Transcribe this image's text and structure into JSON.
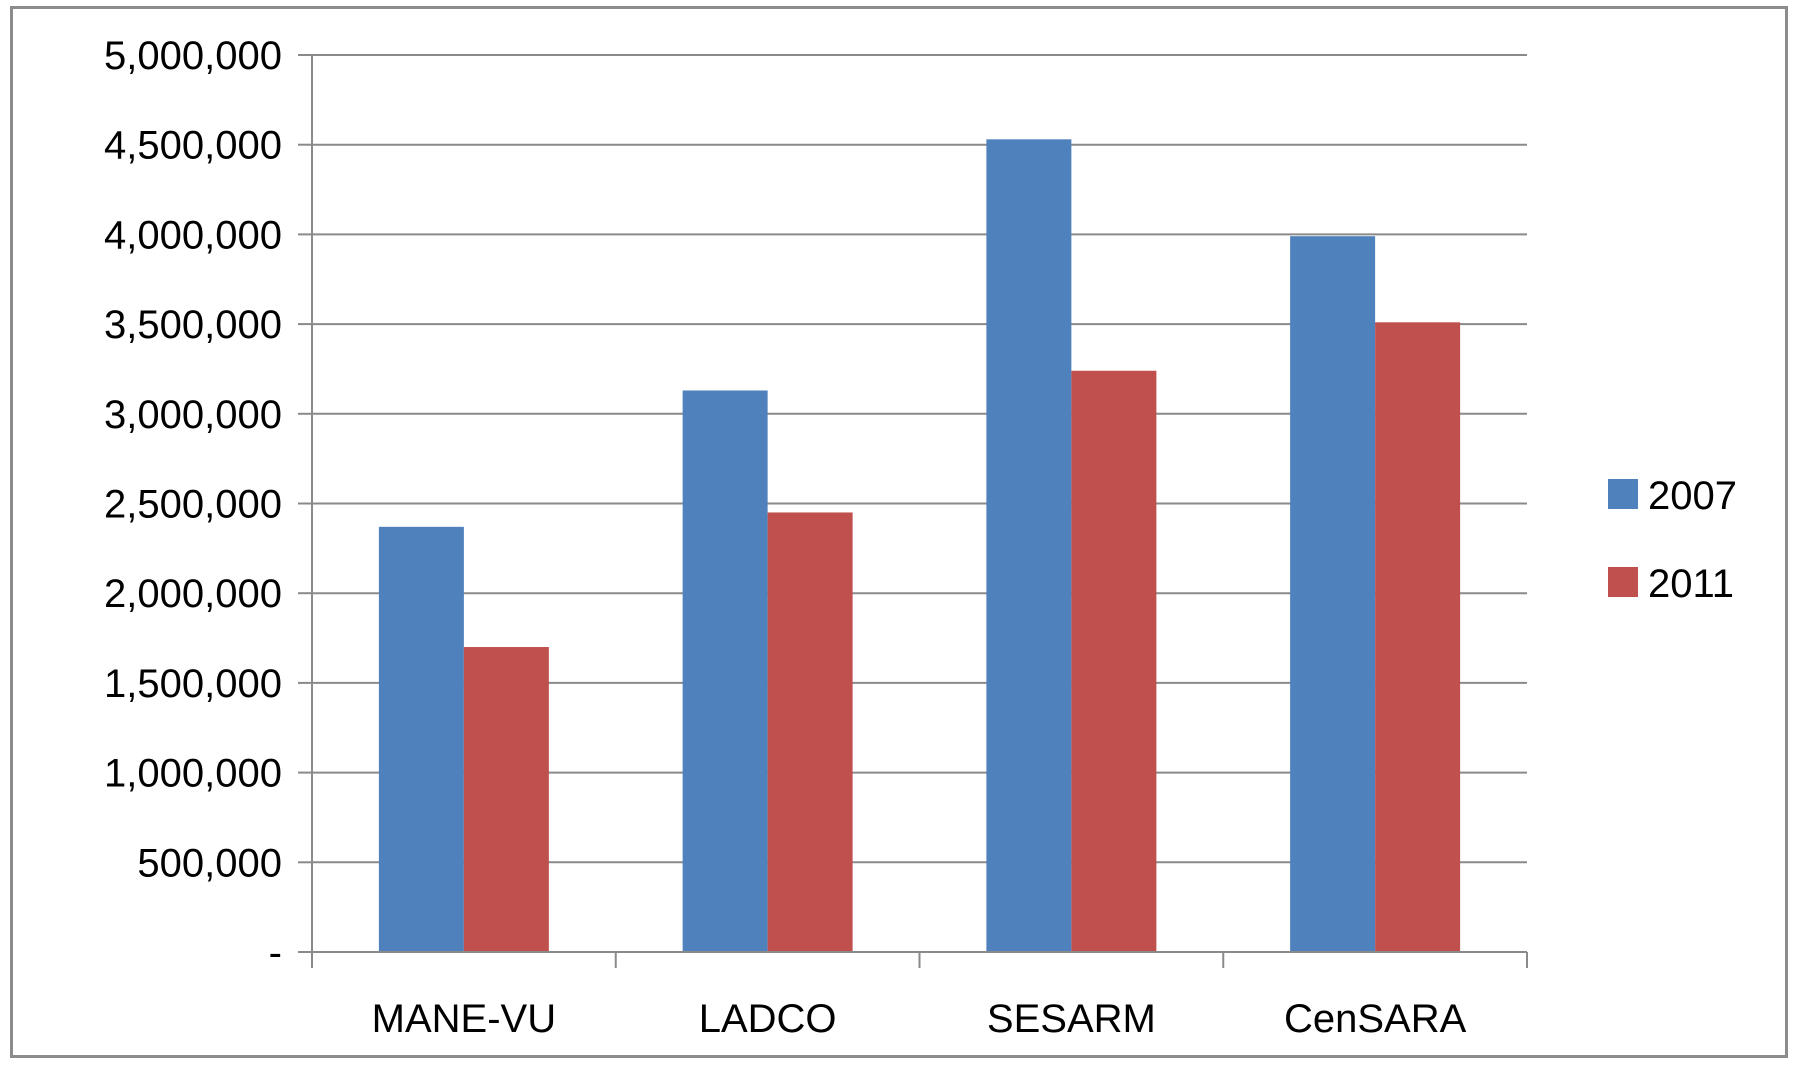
{
  "chart_data": {
    "type": "bar",
    "title": "",
    "xlabel": "",
    "ylabel": "",
    "categories": [
      "MANE-VU",
      "LADCO",
      "SESARM",
      "CenSARA"
    ],
    "series": [
      {
        "name": "2007",
        "color": "#4f81bd",
        "values": [
          2370000,
          3130000,
          4530000,
          3990000
        ]
      },
      {
        "name": "2011",
        "color": "#c0504d",
        "values": [
          1700000,
          2450000,
          3240000,
          3510000
        ]
      }
    ],
    "ylim": [
      0,
      5000000
    ],
    "yticks": [
      {
        "value": 0,
        "label": "-"
      },
      {
        "value": 500000,
        "label": "500,000"
      },
      {
        "value": 1000000,
        "label": "1,000,000"
      },
      {
        "value": 1500000,
        "label": "1,500,000"
      },
      {
        "value": 2000000,
        "label": "2,000,000"
      },
      {
        "value": 2500000,
        "label": "2,500,000"
      },
      {
        "value": 3000000,
        "label": "3,000,000"
      },
      {
        "value": 3500000,
        "label": "3,500,000"
      },
      {
        "value": 4000000,
        "label": "4,000,000"
      },
      {
        "value": 4500000,
        "label": "4,500,000"
      },
      {
        "value": 5000000,
        "label": "5,000,000"
      }
    ],
    "grid": true,
    "legend_position": "right"
  }
}
